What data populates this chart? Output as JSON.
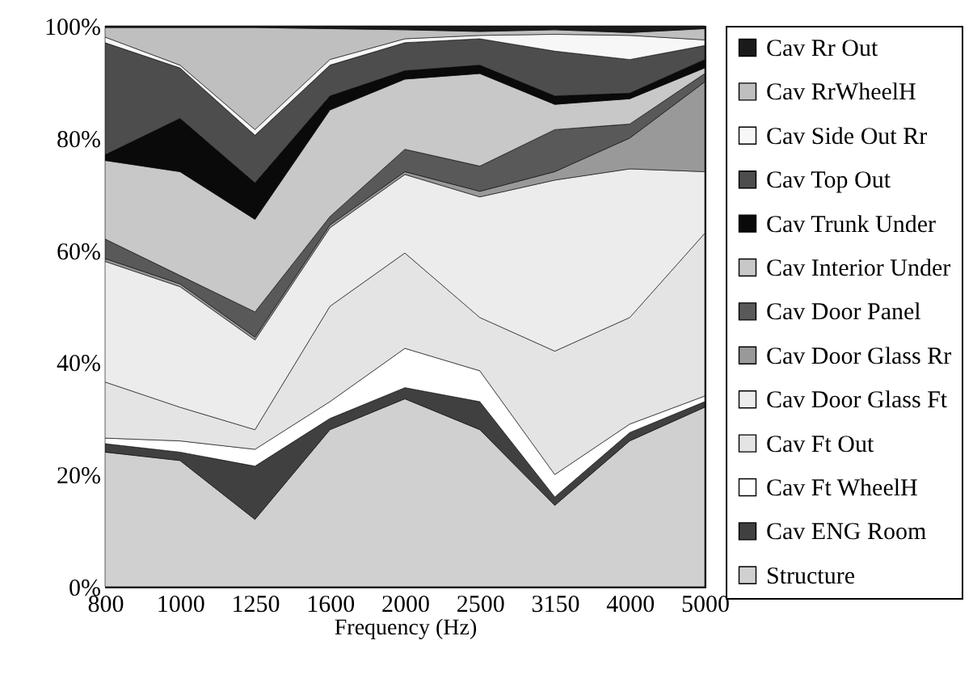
{
  "chart_data": {
    "type": "area",
    "stacked": true,
    "xlabel": "Frequency (Hz)",
    "categories": [
      "800",
      "1000",
      "1250",
      "1600",
      "2000",
      "2500",
      "3150",
      "4000",
      "5000"
    ],
    "ylim": [
      0,
      100
    ],
    "yticks": [
      {
        "value": 0,
        "label": "0%"
      },
      {
        "value": 20,
        "label": "20%"
      },
      {
        "value": 40,
        "label": "40%"
      },
      {
        "value": 60,
        "label": "60%"
      },
      {
        "value": 80,
        "label": "80%"
      },
      {
        "value": 100,
        "label": "100%"
      }
    ],
    "grid": false,
    "legend": "right",
    "series": [
      {
        "name": "Structure",
        "color": "#d0d0d0",
        "values": [
          24,
          22.5,
          12,
          28,
          33.5,
          28,
          14.5,
          26,
          32
        ]
      },
      {
        "name": "Cav ENG Room",
        "color": "#404040",
        "values": [
          1.5,
          1.5,
          9.5,
          2,
          2,
          5,
          1.5,
          1.5,
          1
        ]
      },
      {
        "name": "Cav Ft WheelH",
        "color": "#ffffff",
        "values": [
          1,
          2,
          3,
          3,
          7,
          5.5,
          4,
          1.5,
          1
        ]
      },
      {
        "name": "Cav Ft Out",
        "color": "#e4e4e4",
        "values": [
          10,
          6,
          3.5,
          17,
          17,
          9.5,
          22,
          19,
          29
        ]
      },
      {
        "name": "Cav Door Glass Ft",
        "color": "#ececec",
        "values": [
          21.5,
          21.5,
          16,
          14,
          14,
          21.5,
          30.5,
          26.5,
          11
        ]
      },
      {
        "name": "Cav Door Glass Rr",
        "color": "#999999",
        "values": [
          0.5,
          0.5,
          0.5,
          0.5,
          0.5,
          1,
          1.5,
          5.5,
          16
        ]
      },
      {
        "name": "Cav Door Panel",
        "color": "#595959",
        "values": [
          3.5,
          1.5,
          4.5,
          1.5,
          4,
          4.5,
          7.5,
          2.5,
          1.5
        ]
      },
      {
        "name": "Cav Interior Under",
        "color": "#c8c8c8",
        "values": [
          14,
          18.5,
          16.5,
          19,
          12.5,
          16.5,
          4.5,
          4.5,
          1
        ]
      },
      {
        "name": "Cav Trunk Under",
        "color": "#0a0a0a",
        "values": [
          1,
          9.5,
          6.5,
          2.5,
          1.5,
          1.5,
          1.5,
          1,
          1.5
        ]
      },
      {
        "name": "Cav Top Out",
        "color": "#4d4d4d",
        "values": [
          20,
          9,
          8.5,
          5.5,
          5,
          4.7,
          8,
          6,
          2.5
        ]
      },
      {
        "name": "Cav Side Out Rr",
        "color": "#f7f7f7",
        "values": [
          1,
          0.5,
          1,
          1,
          0.7,
          0.6,
          3,
          4.3,
          1
        ]
      },
      {
        "name": "Cav RrWheelH",
        "color": "#bfbfbf",
        "values": [
          1.7,
          6.7,
          18.2,
          5.5,
          1.6,
          0.7,
          0.8,
          0.5,
          2
        ]
      },
      {
        "name": "Cav Rr Out",
        "color": "#1a1a1a",
        "values": [
          0.3,
          0.3,
          0.3,
          0.5,
          0.7,
          1,
          0.7,
          1.2,
          0.5
        ]
      }
    ]
  }
}
